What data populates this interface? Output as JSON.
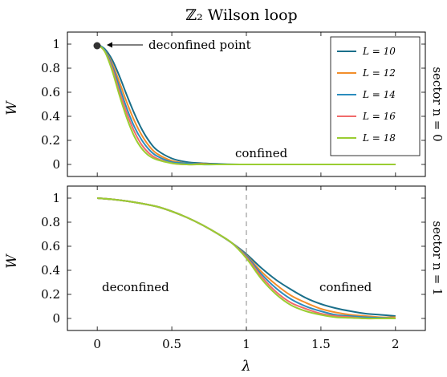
{
  "chart_data": [
    {
      "type": "line",
      "title": "ℤ₂ Wilson loop",
      "ylabel": "W",
      "side_label": "sector n = 0",
      "xlim": [
        -0.2,
        2.2
      ],
      "ylim": [
        -0.1,
        1.1
      ],
      "x_ticks": [
        0,
        0.5,
        1,
        1.5,
        2
      ],
      "y_ticks": [
        0,
        0.2,
        0.4,
        0.6,
        0.8,
        1
      ],
      "y_tick_labels": [
        "0",
        "0.2",
        "0.4",
        "0.6",
        "0.8",
        "1"
      ],
      "legend": {
        "position": "top-right"
      },
      "series": [
        {
          "name": "L = 10",
          "color": "#1a6f8a",
          "x": [
            0,
            0.05,
            0.1,
            0.15,
            0.2,
            0.25,
            0.3,
            0.35,
            0.4,
            0.5,
            0.6,
            0.7,
            0.8,
            1.0,
            1.5,
            2.0
          ],
          "y": [
            1,
            0.96,
            0.87,
            0.73,
            0.57,
            0.42,
            0.29,
            0.19,
            0.12,
            0.05,
            0.02,
            0.01,
            0.005,
            0,
            0,
            0
          ]
        },
        {
          "name": "L = 12",
          "color": "#f28e2b",
          "x": [
            0,
            0.05,
            0.1,
            0.15,
            0.2,
            0.25,
            0.3,
            0.35,
            0.4,
            0.5,
            0.6,
            0.7,
            0.8,
            1.0,
            1.5,
            2.0
          ],
          "y": [
            1,
            0.95,
            0.84,
            0.68,
            0.51,
            0.36,
            0.24,
            0.15,
            0.09,
            0.03,
            0.01,
            0.005,
            0,
            0,
            0,
            0
          ]
        },
        {
          "name": "L = 14",
          "color": "#2b8cbe",
          "x": [
            0,
            0.05,
            0.1,
            0.15,
            0.2,
            0.25,
            0.3,
            0.35,
            0.4,
            0.5,
            0.6,
            0.7,
            0.8,
            1.0,
            1.5,
            2.0
          ],
          "y": [
            1,
            0.95,
            0.82,
            0.64,
            0.46,
            0.31,
            0.2,
            0.12,
            0.07,
            0.02,
            0.01,
            0,
            0,
            0,
            0,
            0
          ]
        },
        {
          "name": "L = 16",
          "color": "#f06a6a",
          "x": [
            0,
            0.05,
            0.1,
            0.15,
            0.2,
            0.25,
            0.3,
            0.35,
            0.4,
            0.5,
            0.6,
            0.7,
            0.8,
            1.0,
            1.5,
            2.0
          ],
          "y": [
            1,
            0.94,
            0.8,
            0.6,
            0.42,
            0.27,
            0.16,
            0.09,
            0.05,
            0.01,
            0,
            0,
            0,
            0,
            0,
            0
          ]
        },
        {
          "name": "L = 18",
          "color": "#9acd32",
          "x": [
            0,
            0.05,
            0.1,
            0.15,
            0.2,
            0.25,
            0.3,
            0.35,
            0.4,
            0.5,
            0.6,
            0.7,
            0.8,
            1.0,
            1.5,
            2.0
          ],
          "y": [
            1,
            0.94,
            0.78,
            0.57,
            0.38,
            0.23,
            0.13,
            0.07,
            0.04,
            0.01,
            0,
            0,
            0,
            0,
            0,
            0
          ]
        }
      ],
      "annotations": [
        {
          "text": "deconfined point",
          "x": 0,
          "y": 1,
          "marker": true,
          "arrow": true
        },
        {
          "text": "confined",
          "x": 1.1,
          "y": 0.1
        }
      ]
    },
    {
      "type": "line",
      "xlabel": "λ",
      "ylabel": "W",
      "side_label": "sector n = 1",
      "xlim": [
        -0.2,
        2.2
      ],
      "ylim": [
        -0.1,
        1.1
      ],
      "x_ticks": [
        0,
        0.5,
        1,
        1.5,
        2
      ],
      "x_tick_labels": [
        "0",
        "0.5",
        "1",
        "1.5",
        "2"
      ],
      "y_ticks": [
        0,
        0.2,
        0.4,
        0.6,
        0.8,
        1
      ],
      "y_tick_labels": [
        "0",
        "0.2",
        "0.4",
        "0.6",
        "0.8",
        "1"
      ],
      "vline": {
        "x": 1,
        "style": "dashed"
      },
      "series": [
        {
          "name": "L = 10",
          "color": "#1a6f8a",
          "x": [
            0,
            0.1,
            0.2,
            0.3,
            0.4,
            0.5,
            0.6,
            0.7,
            0.8,
            0.9,
            1.0,
            1.1,
            1.2,
            1.3,
            1.4,
            1.5,
            1.6,
            1.7,
            1.8,
            1.9,
            2.0
          ],
          "y": [
            1,
            0.99,
            0.975,
            0.955,
            0.93,
            0.89,
            0.84,
            0.78,
            0.71,
            0.63,
            0.535,
            0.42,
            0.32,
            0.24,
            0.17,
            0.12,
            0.085,
            0.06,
            0.04,
            0.03,
            0.02
          ]
        },
        {
          "name": "L = 12",
          "color": "#f28e2b",
          "x": [
            0,
            0.1,
            0.2,
            0.3,
            0.4,
            0.5,
            0.6,
            0.7,
            0.8,
            0.9,
            1.0,
            1.1,
            1.2,
            1.3,
            1.4,
            1.5,
            1.6,
            1.7,
            1.8,
            1.9,
            2.0
          ],
          "y": [
            1,
            0.99,
            0.975,
            0.955,
            0.93,
            0.89,
            0.84,
            0.78,
            0.71,
            0.63,
            0.525,
            0.39,
            0.28,
            0.19,
            0.13,
            0.08,
            0.05,
            0.03,
            0.02,
            0.01,
            0.01
          ]
        },
        {
          "name": "L = 14",
          "color": "#2b8cbe",
          "x": [
            0,
            0.1,
            0.2,
            0.3,
            0.4,
            0.5,
            0.6,
            0.7,
            0.8,
            0.9,
            1.0,
            1.1,
            1.2,
            1.3,
            1.4,
            1.5,
            1.6,
            1.7,
            1.8,
            1.9,
            2.0
          ],
          "y": [
            1,
            0.99,
            0.975,
            0.955,
            0.93,
            0.89,
            0.84,
            0.78,
            0.71,
            0.63,
            0.52,
            0.37,
            0.25,
            0.16,
            0.1,
            0.06,
            0.03,
            0.02,
            0.01,
            0.005,
            0
          ]
        },
        {
          "name": "L = 16",
          "color": "#f06a6a",
          "x": [
            0,
            0.1,
            0.2,
            0.3,
            0.4,
            0.5,
            0.6,
            0.7,
            0.8,
            0.9,
            1.0,
            1.1,
            1.2,
            1.3,
            1.4,
            1.5,
            1.6,
            1.7,
            1.8,
            1.9,
            2.0
          ],
          "y": [
            1,
            0.99,
            0.975,
            0.955,
            0.93,
            0.89,
            0.84,
            0.78,
            0.71,
            0.63,
            0.51,
            0.35,
            0.22,
            0.13,
            0.08,
            0.04,
            0.02,
            0.01,
            0,
            0,
            0
          ]
        },
        {
          "name": "L = 18",
          "color": "#9acd32",
          "x": [
            0,
            0.1,
            0.2,
            0.3,
            0.4,
            0.5,
            0.6,
            0.7,
            0.8,
            0.9,
            1.0,
            1.1,
            1.2,
            1.3,
            1.4,
            1.5,
            1.6,
            1.7,
            1.8,
            1.9,
            2.0
          ],
          "y": [
            1,
            0.99,
            0.975,
            0.955,
            0.93,
            0.89,
            0.84,
            0.78,
            0.71,
            0.63,
            0.5,
            0.33,
            0.2,
            0.11,
            0.06,
            0.03,
            0.01,
            0.005,
            0,
            0,
            0
          ]
        }
      ],
      "annotations": [
        {
          "text": "deconfined",
          "x": 0.3,
          "y": 0.25
        },
        {
          "text": "confined",
          "x": 1.7,
          "y": 0.25
        }
      ]
    }
  ]
}
